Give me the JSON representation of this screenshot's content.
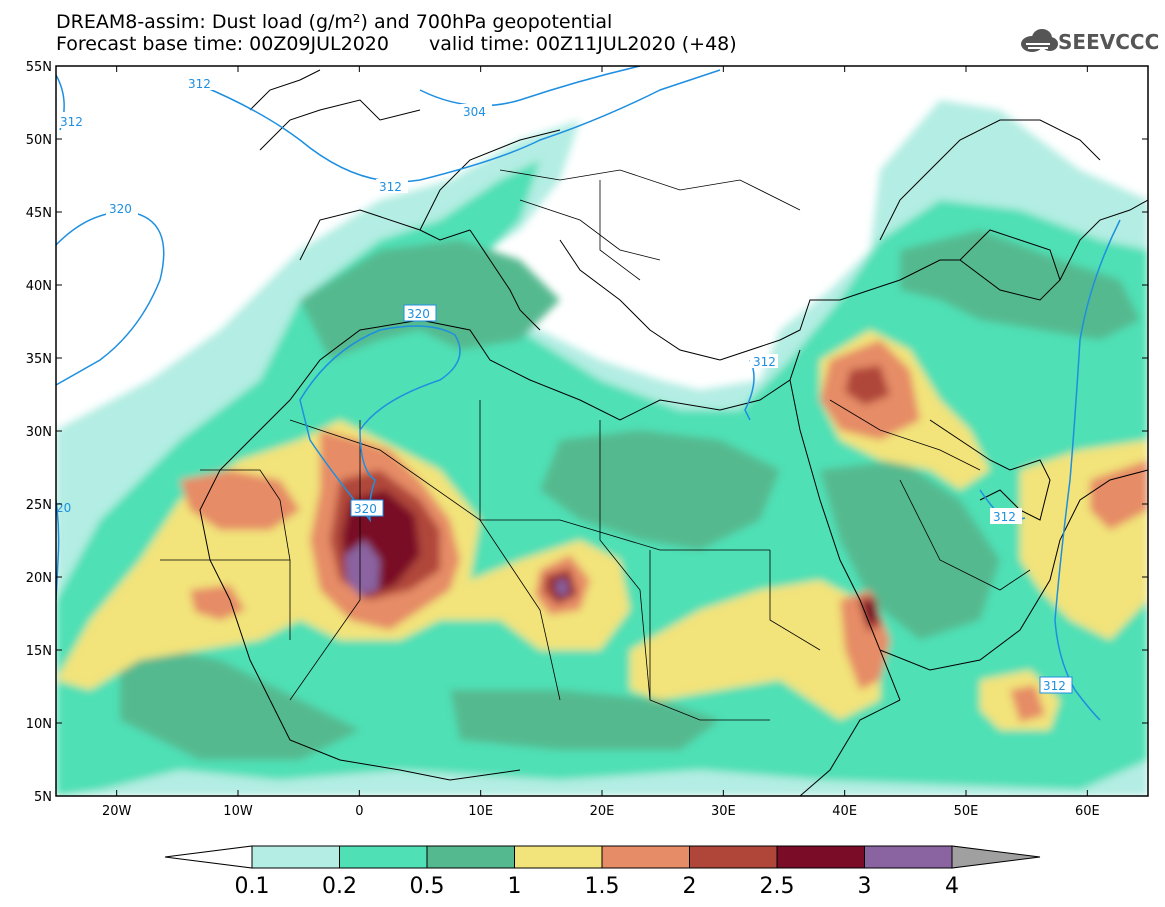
{
  "header": {
    "line1": "DREAM8-assim: Dust load (g/m²) and 700hPa geopotential",
    "base_time": "Forecast base time: 00Z09JUL2020",
    "valid_time": "valid time: 00Z11JUL2020 (+48)"
  },
  "logo": {
    "text": "SEEVCCC",
    "icon": "cloud-icon"
  },
  "map": {
    "lon_range": [
      -25,
      65
    ],
    "lat_range": [
      5,
      55
    ],
    "lat_ticks": [
      "55N",
      "50N",
      "45N",
      "40N",
      "35N",
      "30N",
      "25N",
      "20N",
      "15N",
      "10N",
      "5N"
    ],
    "lon_ticks": [
      "20W",
      "10W",
      "0",
      "10E",
      "20E",
      "30E",
      "40E",
      "50E",
      "60E"
    ],
    "contour_labels": [
      "312",
      "312",
      "304",
      "312",
      "320",
      "320",
      "312",
      "320",
      "312",
      "312",
      "20"
    ],
    "contour_color": "#1e8fe0"
  },
  "colorbar": {
    "labels": [
      "0.1",
      "0.2",
      "0.5",
      "1",
      "1.5",
      "2",
      "2.5",
      "3",
      "4"
    ],
    "colors": [
      "#b3ede3",
      "#4fe0b5",
      "#55b98f",
      "#f2e37a",
      "#e68c66",
      "#b0463a",
      "#7a0c28",
      "#8a64a0",
      "#a0a0a0"
    ]
  }
}
